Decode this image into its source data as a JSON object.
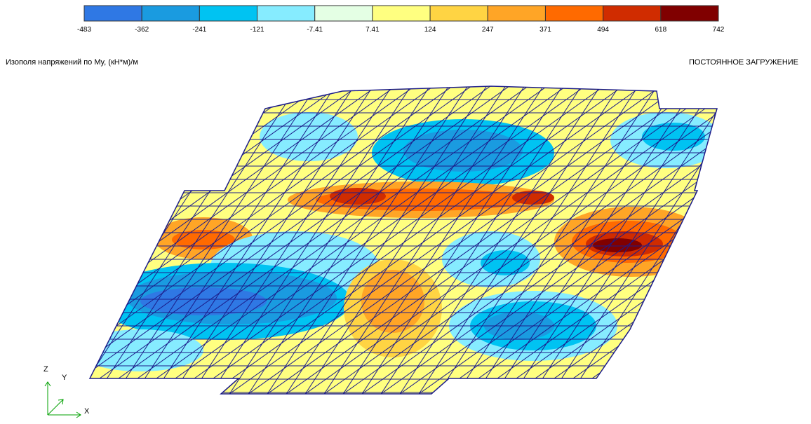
{
  "legend": {
    "colors": [
      "#2f78e4",
      "#1a9be0",
      "#00c3f2",
      "#86ecff",
      "#e4ffe4",
      "#ffff80",
      "#ffd443",
      "#ffa526",
      "#ff6a00",
      "#d02c00",
      "#800000"
    ],
    "labels": [
      "-483",
      "-362",
      "-241",
      "-121",
      "-7.41",
      "7.41",
      "124",
      "247",
      "371",
      "494",
      "618",
      "742"
    ]
  },
  "header": {
    "title": "Изополя напряжений по My, (кН*м)/м",
    "load_case": "ПОСТОЯННОЕ ЗАГРУЖЕНИЕ"
  },
  "axes": {
    "z": "Z",
    "y": "Y",
    "x": "X"
  }
}
